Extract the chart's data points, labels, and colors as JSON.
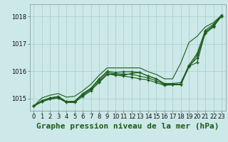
{
  "title": "Graphe pression niveau de la mer (hPa)",
  "background_color": "#cce8e8",
  "grid_color": "#aacccc",
  "line_color": "#1a5c1a",
  "xlim": [
    -0.5,
    23.5
  ],
  "ylim": [
    1014.55,
    1018.45
  ],
  "yticks": [
    1015,
    1016,
    1017,
    1018
  ],
  "xticks": [
    0,
    1,
    2,
    3,
    4,
    5,
    6,
    7,
    8,
    9,
    10,
    11,
    12,
    13,
    14,
    15,
    16,
    17,
    18,
    19,
    20,
    21,
    22,
    23
  ],
  "lines": [
    [
      1014.72,
      1014.92,
      1015.02,
      1015.05,
      1014.88,
      1014.9,
      1015.12,
      1015.32,
      1015.58,
      1015.88,
      1015.9,
      1015.85,
      1015.92,
      1015.95,
      1015.82,
      1015.72,
      1015.52,
      1015.52,
      1015.52,
      1016.15,
      1016.58,
      1017.38,
      1017.62,
      1018.02
    ],
    [
      1014.72,
      1014.92,
      1015.02,
      1015.08,
      1014.88,
      1014.9,
      1015.18,
      1015.38,
      1015.72,
      1016.0,
      1015.95,
      1015.98,
      1015.98,
      1015.95,
      1015.82,
      1015.72,
      1015.55,
      1015.55,
      1015.58,
      1016.22,
      1016.65,
      1017.5,
      1017.72,
      1018.05
    ],
    [
      1014.72,
      1014.88,
      1014.98,
      1015.02,
      1014.85,
      1014.85,
      1015.08,
      1015.28,
      1015.62,
      1015.9,
      1015.85,
      1015.82,
      1015.78,
      1015.72,
      1015.68,
      1015.58,
      1015.48,
      1015.5,
      1015.5,
      1016.18,
      1016.32,
      1017.42,
      1017.68,
      1018.02
    ],
    [
      1014.72,
      1014.88,
      1014.98,
      1015.02,
      1014.88,
      1014.88,
      1015.15,
      1015.35,
      1015.68,
      1015.95,
      1015.9,
      1015.9,
      1015.88,
      1015.82,
      1015.75,
      1015.65,
      1015.5,
      1015.52,
      1015.52,
      1016.2,
      1016.48,
      1017.45,
      1017.65,
      1018.02
    ]
  ],
  "top_line": [
    1014.72,
    1015.02,
    1015.12,
    1015.18,
    1015.05,
    1015.08,
    1015.28,
    1015.52,
    1015.85,
    1016.12,
    1016.12,
    1016.12,
    1016.12,
    1016.12,
    1015.98,
    1015.88,
    1015.72,
    1015.72,
    1016.3,
    1017.05,
    1017.28,
    1017.62,
    1017.78,
    1018.05
  ],
  "title_fontsize": 8,
  "tick_fontsize": 6
}
